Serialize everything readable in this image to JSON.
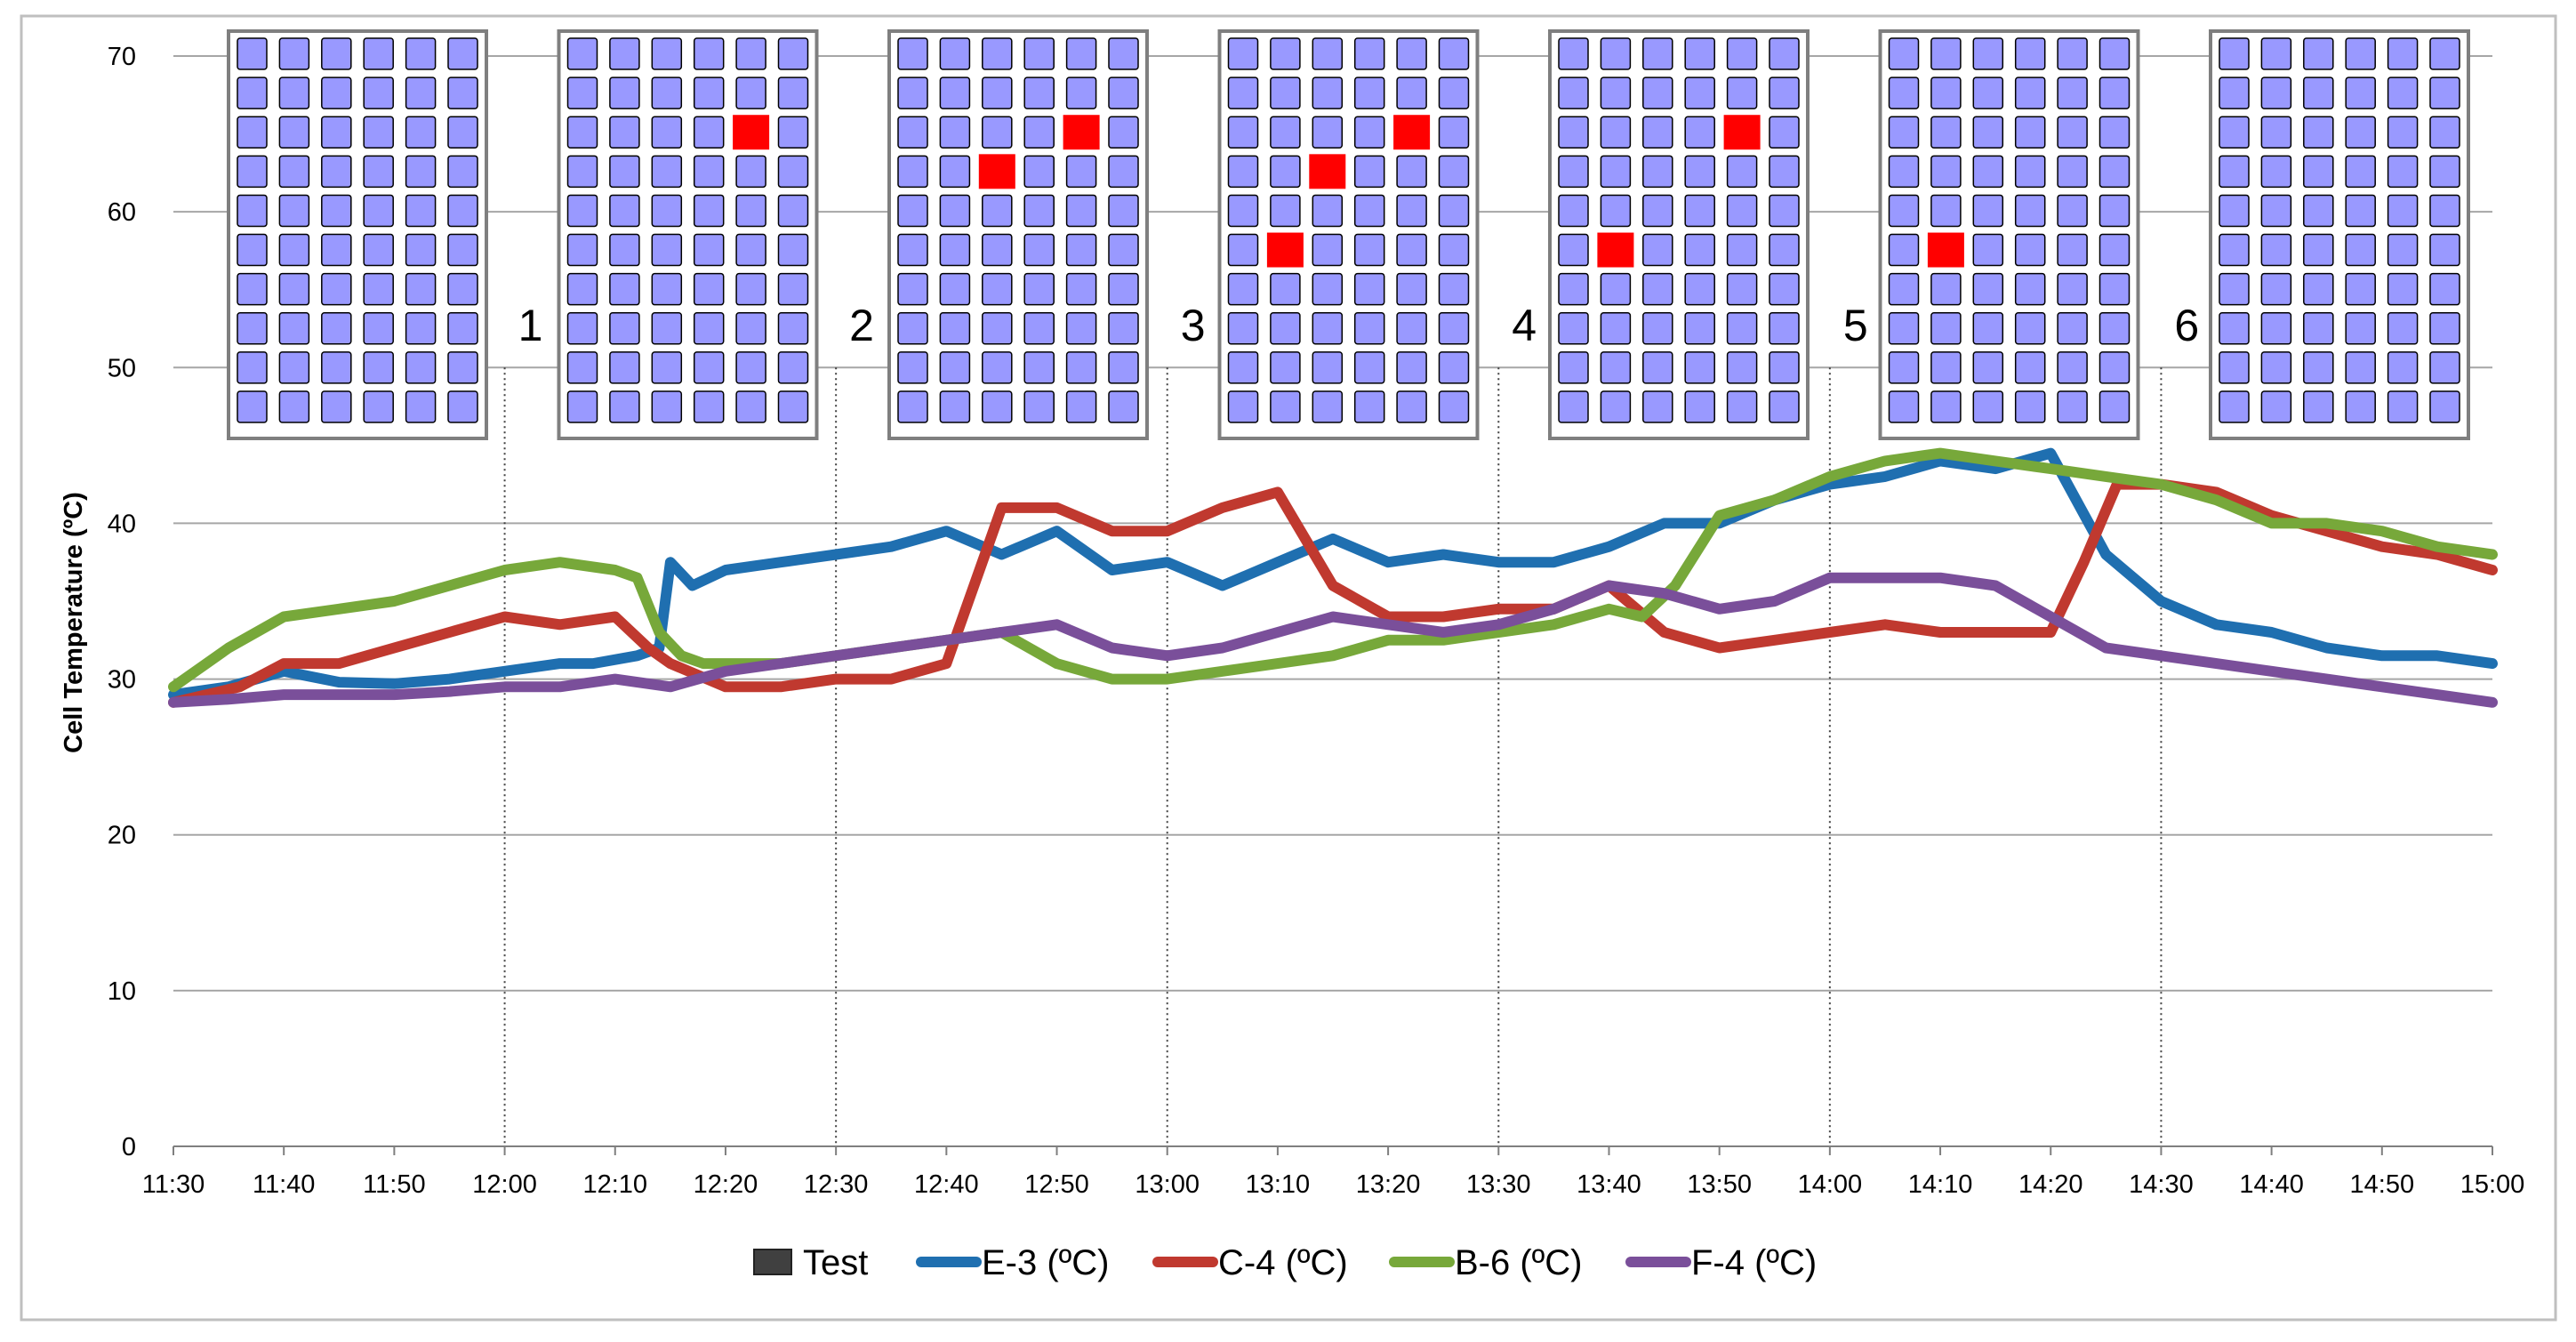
{
  "chart_data": {
    "type": "line",
    "title": "",
    "xlabel": "",
    "ylabel": "Cell Temperature (ºC)",
    "ylim": [
      0,
      70
    ],
    "y_ticks": [
      "0",
      "10",
      "20",
      "30",
      "40",
      "50",
      "60",
      "70"
    ],
    "x_ticks": [
      "11:30",
      "11:40",
      "11:50",
      "12:00",
      "12:10",
      "12:20",
      "12:30",
      "12:40",
      "12:50",
      "13:00",
      "13:10",
      "13:20",
      "13:30",
      "13:40",
      "13:50",
      "14:00",
      "14:10",
      "14:20",
      "14:30",
      "14:40",
      "14:50",
      "15:00"
    ],
    "x_range_minutes": [
      0,
      210
    ],
    "grid": true,
    "legend_position": "bottom",
    "test_markers": [
      {
        "label": "1",
        "time": "12:00"
      },
      {
        "label": "2",
        "time": "12:30"
      },
      {
        "label": "3",
        "time": "13:00"
      },
      {
        "label": "4",
        "time": "13:30"
      },
      {
        "label": "5",
        "time": "14:00"
      },
      {
        "label": "6",
        "time": "14:30"
      }
    ],
    "module_diagrams": {
      "columns": 6,
      "rows": 10,
      "cell_color": "#9999ff",
      "hot_cell_color": "#ff0000",
      "panels": [
        {
          "hot_cells": []
        },
        {
          "hot_cells": [
            [
              2,
              4
            ]
          ]
        },
        {
          "hot_cells": [
            [
              2,
              4
            ],
            [
              3,
              2
            ]
          ]
        },
        {
          "hot_cells": [
            [
              2,
              4
            ],
            [
              3,
              2
            ],
            [
              5,
              1
            ]
          ]
        },
        {
          "hot_cells": [
            [
              2,
              4
            ],
            [
              5,
              1
            ]
          ]
        },
        {
          "hot_cells": [
            [
              5,
              1
            ]
          ]
        },
        {
          "hot_cells": []
        }
      ]
    },
    "legend": [
      {
        "name": "Test",
        "kind": "pattern",
        "color": "#404040"
      },
      {
        "name": "E-3 (ºC)",
        "kind": "line",
        "color": "#1f6fb0"
      },
      {
        "name": "C-4 (ºC)",
        "kind": "line",
        "color": "#c0392f"
      },
      {
        "name": "B-6 (ºC)",
        "kind": "line",
        "color": "#77a83a"
      },
      {
        "name": "F-4 (ºC)",
        "kind": "line",
        "color": "#7a4f9a"
      }
    ],
    "series": [
      {
        "name": "E-3 (ºC)",
        "color": "#1f6fb0",
        "x": [
          0,
          5,
          10,
          15,
          20,
          25,
          30,
          35,
          38,
          42,
          44,
          45,
          47,
          50,
          55,
          60,
          65,
          70,
          75,
          80,
          85,
          90,
          95,
          100,
          105,
          110,
          115,
          120,
          125,
          130,
          135,
          140,
          145,
          150,
          155,
          160,
          165,
          170,
          175,
          180,
          185,
          190,
          195,
          200,
          205,
          210
        ],
        "y": [
          29,
          29.5,
          30.5,
          29.8,
          29.7,
          30,
          30.5,
          31,
          31,
          31.5,
          32,
          37.5,
          36,
          37,
          37.5,
          38,
          38.5,
          39.5,
          38,
          39.5,
          37,
          37.5,
          36,
          37.5,
          39,
          37.5,
          38,
          37.5,
          37.5,
          38.5,
          40,
          40,
          41.5,
          42.5,
          43,
          44,
          43.5,
          44.5,
          38,
          35,
          33.5,
          33,
          32,
          31.5,
          31.5,
          31
        ]
      },
      {
        "name": "C-4 (ºC)",
        "color": "#c0392f",
        "x": [
          0,
          3,
          6,
          10,
          15,
          20,
          25,
          30,
          35,
          40,
          43,
          45,
          50,
          55,
          60,
          65,
          70,
          75,
          80,
          85,
          90,
          95,
          100,
          105,
          110,
          115,
          120,
          125,
          130,
          135,
          140,
          145,
          150,
          155,
          160,
          165,
          170,
          173,
          176,
          180,
          185,
          190,
          195,
          200,
          205,
          210
        ],
        "y": [
          28.5,
          29,
          29.5,
          31,
          31,
          32,
          33,
          34,
          33.5,
          34,
          32,
          31,
          29.5,
          29.5,
          30,
          30,
          31,
          41,
          41,
          39.5,
          39.5,
          41,
          42,
          36,
          34,
          34,
          34.5,
          34.5,
          36,
          33,
          32,
          32.5,
          33,
          33.5,
          33,
          33,
          33,
          37.5,
          42.5,
          42.5,
          42,
          40.5,
          39.5,
          38.5,
          38,
          37
        ]
      },
      {
        "name": "B-6 (ºC)",
        "color": "#77a83a",
        "x": [
          0,
          5,
          10,
          15,
          20,
          25,
          30,
          35,
          40,
          42,
          44,
          46,
          48,
          50,
          55,
          60,
          65,
          70,
          75,
          80,
          85,
          90,
          95,
          100,
          105,
          110,
          115,
          120,
          125,
          130,
          133,
          136,
          140,
          145,
          150,
          155,
          160,
          165,
          170,
          175,
          180,
          185,
          190,
          195,
          200,
          205,
          210
        ],
        "y": [
          29.5,
          32,
          34,
          34.5,
          35,
          36,
          37,
          37.5,
          37,
          36.5,
          33,
          31.5,
          31,
          31,
          31,
          31.5,
          32,
          32.5,
          33,
          31,
          30,
          30,
          30.5,
          31,
          31.5,
          32.5,
          32.5,
          33,
          33.5,
          34.5,
          34,
          36,
          40.5,
          41.5,
          43,
          44,
          44.5,
          44,
          43.5,
          43,
          42.5,
          41.5,
          40,
          40,
          39.5,
          38.5,
          38
        ]
      },
      {
        "name": "F-4 (ºC)",
        "color": "#7a4f9a",
        "x": [
          0,
          5,
          10,
          15,
          20,
          25,
          30,
          35,
          40,
          45,
          50,
          55,
          60,
          65,
          70,
          75,
          80,
          85,
          90,
          95,
          100,
          105,
          110,
          115,
          120,
          125,
          130,
          135,
          140,
          145,
          150,
          155,
          160,
          165,
          170,
          175,
          180,
          185,
          190,
          195,
          200,
          205,
          210
        ],
        "y": [
          28.5,
          28.7,
          29,
          29,
          29,
          29.2,
          29.5,
          29.5,
          30,
          29.5,
          30.5,
          31,
          31.5,
          32,
          32.5,
          33,
          33.5,
          32,
          31.5,
          32,
          33,
          34,
          33.5,
          33,
          33.5,
          34.5,
          36,
          35.5,
          34.5,
          35,
          36.5,
          36.5,
          36.5,
          36,
          34,
          32,
          31.5,
          31,
          30.5,
          30,
          29.5,
          29,
          28.5
        ]
      }
    ]
  }
}
